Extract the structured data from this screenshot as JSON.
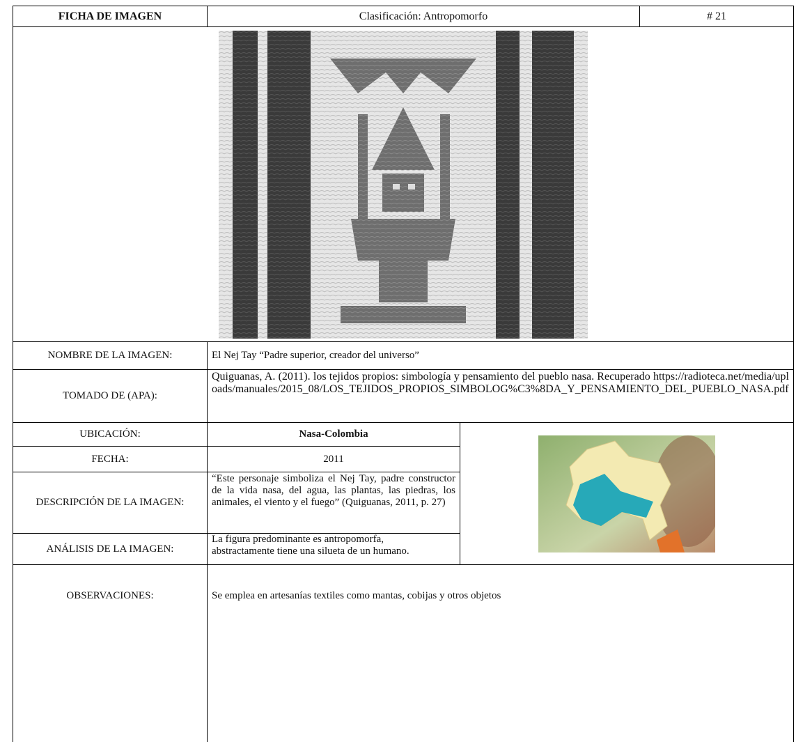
{
  "header": {
    "title": "FICHA DE IMAGEN",
    "classification": "Clasificación: Antropomorfo",
    "number": "# 21"
  },
  "rows": [
    {
      "label": "NOMBRE DE LA IMAGEN:",
      "value": "El Nej Tay “Padre superior, creador del universo”"
    },
    {
      "label": "TOMADO DE (APA):",
      "value": "Quiguanas, A. (2011). los tejidos propios: simbología y pensamiento del pueblo nasa. Recuperado https://radioteca.net/media/uploads/manuales/2015_08/LOS_TEJIDOS_PROPIOS_SIMBOLOG%C3%8DA_Y_PENSAMIENTO_DEL_PUEBLO_NASA.pdf"
    },
    {
      "label": "UBICACIÓN:",
      "value": "Nasa-Colombia"
    },
    {
      "label": "FECHA:",
      "value": "2011"
    },
    {
      "label": "DESCRIPCIÓN DE LA IMAGEN:",
      "value": "“Este personaje simboliza el Nej Tay, padre constructor de la vida nasa, del agua, las plantas, las piedras, los animales, el viento y el fuego” (Quiguanas, 2011, p. 27)"
    },
    {
      "label": "ANÁLISIS DE LA IMAGEN:",
      "value": "La figura predominante es antropomorfa, abstractamente tiene una silueta de un humano."
    },
    {
      "label": "OBSERVACIONES:",
      "value": "Se emplea en artesanías textiles como mantas, cobijas y otros objetos"
    }
  ]
}
